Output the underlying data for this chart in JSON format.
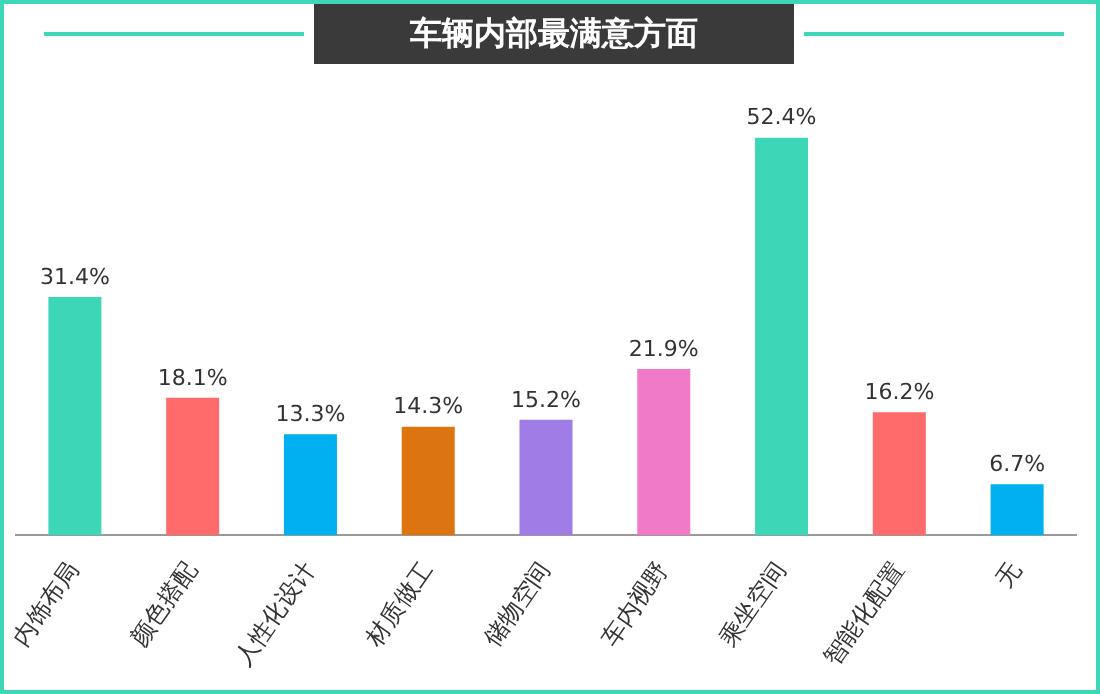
{
  "chart_data": {
    "type": "bar",
    "title": "车辆内部最满意方面",
    "categories": [
      "内饰布局",
      "颜色搭配",
      "人性化设计",
      "材质做工",
      "储物空间",
      "车内视野",
      "乘坐空间",
      "智能化配置",
      "无"
    ],
    "values": [
      31.4,
      18.1,
      13.3,
      14.3,
      15.2,
      21.9,
      52.4,
      16.2,
      6.7
    ],
    "value_labels": [
      "31.4%",
      "18.1%",
      "13.3%",
      "14.3%",
      "15.2%",
      "21.9%",
      "52.4%",
      "16.2%",
      "6.7%"
    ],
    "colors": [
      "#3dd6b6",
      "#ff6b6b",
      "#00b0f0",
      "#dc7410",
      "#a07ce6",
      "#f07ac8",
      "#3dd6b6",
      "#ff6b6b",
      "#00b0f0"
    ],
    "grid": false,
    "legend": false,
    "tick_labels": "x"
  }
}
